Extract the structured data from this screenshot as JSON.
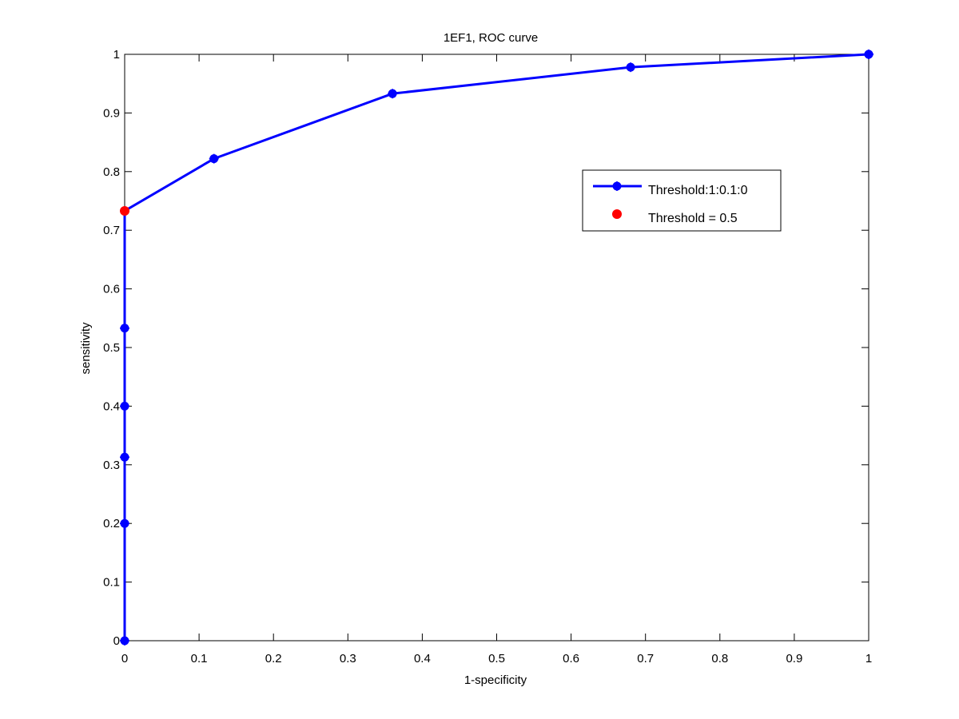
{
  "chart_data": {
    "type": "line",
    "title": "1EF1, ROC curve",
    "xlabel": "1-specificity",
    "ylabel": "sensitivity",
    "xlim": [
      0,
      1
    ],
    "ylim": [
      0,
      1
    ],
    "xticks": [
      "0",
      "0.1",
      "0.2",
      "0.3",
      "0.4",
      "0.5",
      "0.6",
      "0.7",
      "0.8",
      "0.9",
      "1"
    ],
    "yticks": [
      "0",
      "0.1",
      "0.2",
      "0.3",
      "0.4",
      "0.5",
      "0.6",
      "0.7",
      "0.8",
      "0.9",
      "1"
    ],
    "grid": false,
    "legend_position": "upper-right",
    "series": [
      {
        "name": "Threshold:1:0.1:0",
        "color": "#0000ff",
        "marker": "asterisk",
        "points": [
          {
            "x": 0,
            "y": 0
          },
          {
            "x": 0,
            "y": 0.2
          },
          {
            "x": 0,
            "y": 0.313
          },
          {
            "x": 0,
            "y": 0.4
          },
          {
            "x": 0,
            "y": 0.533
          },
          {
            "x": 0,
            "y": 0.733
          },
          {
            "x": 0.12,
            "y": 0.822
          },
          {
            "x": 0.36,
            "y": 0.933
          },
          {
            "x": 0.68,
            "y": 0.978
          },
          {
            "x": 1,
            "y": 1
          },
          {
            "x": 1,
            "y": 1
          }
        ]
      },
      {
        "name": "Threshold = 0.5",
        "color": "#ff0000",
        "marker": "dot",
        "points": [
          {
            "x": 0,
            "y": 0.733
          }
        ]
      }
    ]
  }
}
